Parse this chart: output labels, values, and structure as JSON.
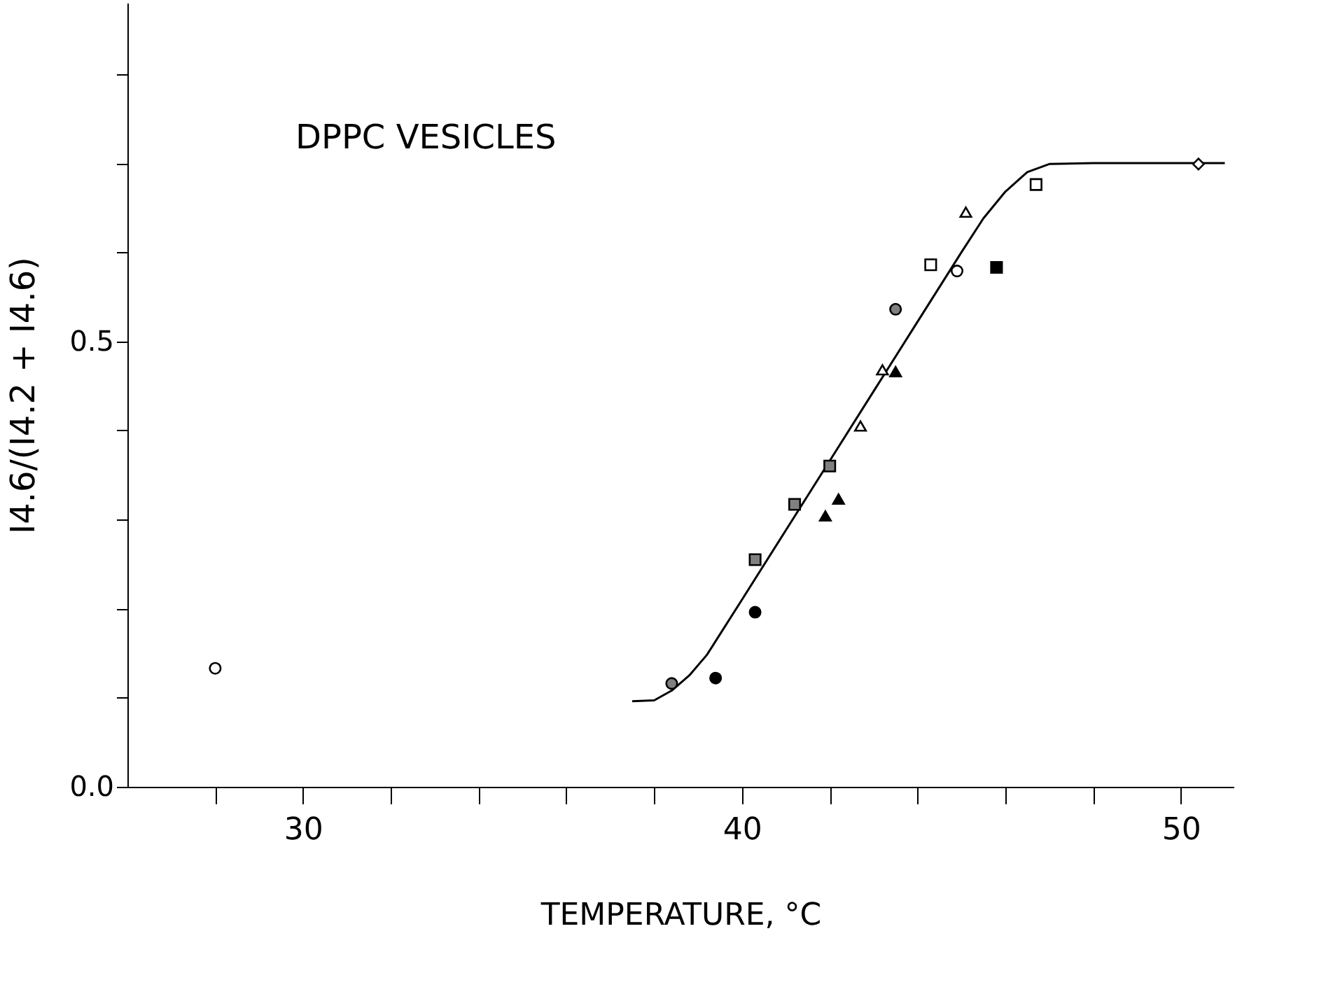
{
  "chart_data": {
    "type": "scatter",
    "xlabel": "TEMPERATURE, °C",
    "ylabel": "I4.6/(I4.2 + I4.6)",
    "annotations": [
      "DPPC VESICLES"
    ],
    "xlim": [
      26,
      51.2
    ],
    "ylim": [
      0,
      0.88
    ],
    "xticks": [
      {
        "value": 28,
        "label": null
      },
      30,
      {
        "value": 32,
        "label": null
      },
      {
        "value": 34,
        "label": null
      },
      {
        "value": 36,
        "label": null
      },
      {
        "value": 38,
        "label": null
      },
      40,
      {
        "value": 42,
        "label": null
      },
      {
        "value": 44,
        "label": null
      },
      {
        "value": 46,
        "label": null
      },
      {
        "value": 48,
        "label": null
      },
      50
    ],
    "yticks": [
      {
        "value": 0,
        "label": "0.0"
      },
      {
        "value": 0.1,
        "label": null
      },
      {
        "value": 0.2,
        "label": null
      },
      {
        "value": 0.3,
        "label": null
      },
      {
        "value": 0.4,
        "label": null
      },
      {
        "value": 0.5,
        "label": "0.5"
      },
      {
        "value": 0.6,
        "label": null
      },
      {
        "value": 0.7,
        "label": null
      },
      {
        "value": 0.8,
        "label": null
      }
    ],
    "grid": false,
    "series": [
      {
        "type": "line",
        "color": "#000000",
        "marker": "none",
        "line_style": "solid",
        "x": [
          37.5,
          38.0,
          38.4,
          38.8,
          39.2,
          40,
          41,
          42,
          43,
          44,
          45,
          45.5,
          46,
          46.5,
          47,
          48,
          51
        ],
        "values": [
          0.096,
          0.097,
          0.108,
          0.125,
          0.148,
          0.21,
          0.288,
          0.366,
          0.444,
          0.522,
          0.6,
          0.638,
          0.668,
          0.69,
          0.699,
          0.7,
          0.7
        ]
      },
      {
        "color": "#ffffff",
        "marker": "circle",
        "x": [
          28.0,
          44.9
        ],
        "values": [
          0.133,
          0.579
        ]
      },
      {
        "color": "#808080",
        "marker": "circle",
        "x": [
          38.4,
          43.5
        ],
        "values": [
          0.116,
          0.536
        ]
      },
      {
        "color": "#000000",
        "marker": "circle",
        "x": [
          39.4,
          40.3
        ],
        "values": [
          0.122,
          0.196
        ]
      },
      {
        "color": "#808080",
        "marker": "square",
        "x": [
          40.3,
          41.2,
          42.0
        ],
        "values": [
          0.255,
          0.317,
          0.36
        ]
      },
      {
        "color": "#ffffff",
        "marker": "square",
        "x": [
          44.3,
          46.7
        ],
        "values": [
          0.586,
          0.676
        ]
      },
      {
        "color": "#000000",
        "marker": "square",
        "x": [
          45.8
        ],
        "values": [
          0.583
        ]
      },
      {
        "color": "#ffffff",
        "marker": "triangle",
        "x": [
          42.7,
          43.2,
          45.1
        ],
        "values": [
          0.405,
          0.468,
          0.645
        ]
      },
      {
        "color": "#000000",
        "marker": "triangle",
        "x": [
          41.9,
          42.2,
          43.5
        ],
        "values": [
          0.304,
          0.323,
          0.466
        ]
      },
      {
        "color": "#ffffff",
        "marker": "diamond",
        "x": [
          50.4
        ],
        "values": [
          0.699
        ]
      }
    ]
  }
}
